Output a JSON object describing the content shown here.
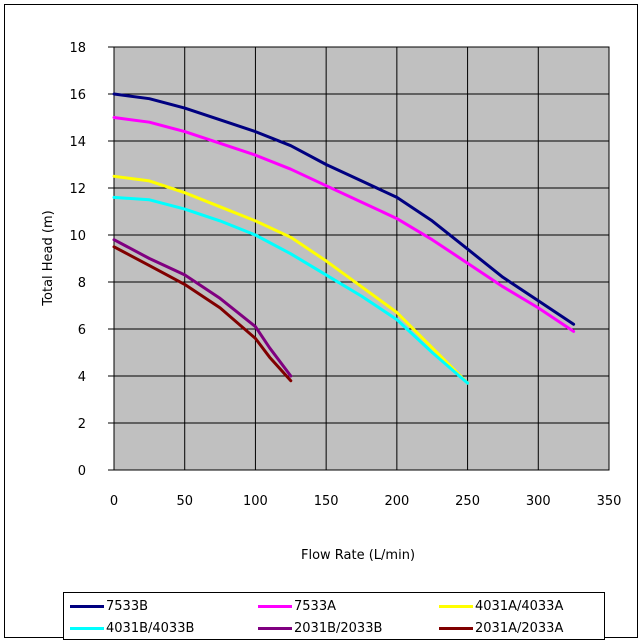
{
  "chart_data": {
    "type": "line",
    "title": "",
    "xlabel": "Flow Rate (L/min)",
    "ylabel": "Total Head (m)",
    "xlim": [
      0,
      350
    ],
    "ylim": [
      0,
      18
    ],
    "xticks": [
      "0",
      "50",
      "100",
      "150",
      "200",
      "250",
      "300",
      "350"
    ],
    "yticks": [
      "0",
      "2",
      "4",
      "6",
      "8",
      "10",
      "12",
      "14",
      "16",
      "18"
    ],
    "grid": true,
    "plot_background": "#c0c0c0",
    "legend_position": "bottom",
    "series": [
      {
        "name": "7533B",
        "color": "#000080",
        "x": [
          0,
          25,
          50,
          75,
          100,
          125,
          150,
          175,
          200,
          225,
          250,
          275,
          300,
          325
        ],
        "y": [
          16.0,
          15.8,
          15.4,
          14.9,
          14.4,
          13.8,
          13.0,
          12.3,
          11.6,
          10.6,
          9.4,
          8.2,
          7.2,
          6.2
        ]
      },
      {
        "name": "7533A",
        "color": "#ff00ff",
        "x": [
          0,
          25,
          50,
          75,
          100,
          125,
          150,
          175,
          200,
          225,
          250,
          275,
          300,
          325
        ],
        "y": [
          15.0,
          14.8,
          14.4,
          13.9,
          13.4,
          12.8,
          12.1,
          11.4,
          10.7,
          9.8,
          8.8,
          7.8,
          6.9,
          5.9
        ]
      },
      {
        "name": "4031A/4033A",
        "color": "#ffff00",
        "x": [
          0,
          25,
          50,
          75,
          100,
          125,
          150,
          175,
          200,
          225,
          250
        ],
        "y": [
          12.5,
          12.3,
          11.8,
          11.2,
          10.6,
          9.9,
          8.9,
          7.8,
          6.7,
          5.2,
          3.7
        ]
      },
      {
        "name": "4031B/4033B",
        "color": "#00ffff",
        "x": [
          0,
          25,
          50,
          75,
          100,
          125,
          150,
          175,
          200,
          225,
          250
        ],
        "y": [
          11.6,
          11.5,
          11.1,
          10.6,
          10.0,
          9.2,
          8.3,
          7.4,
          6.4,
          5.0,
          3.7
        ]
      },
      {
        "name": "2031B/2033B",
        "color": "#800080",
        "x": [
          0,
          25,
          50,
          75,
          100,
          110,
          125
        ],
        "y": [
          9.8,
          9.0,
          8.3,
          7.3,
          6.1,
          5.2,
          4.0
        ]
      },
      {
        "name": "2031A/2033A",
        "color": "#800000",
        "x": [
          0,
          25,
          50,
          75,
          100,
          110,
          125
        ],
        "y": [
          9.5,
          8.7,
          7.9,
          6.9,
          5.6,
          4.8,
          3.8
        ]
      }
    ]
  }
}
